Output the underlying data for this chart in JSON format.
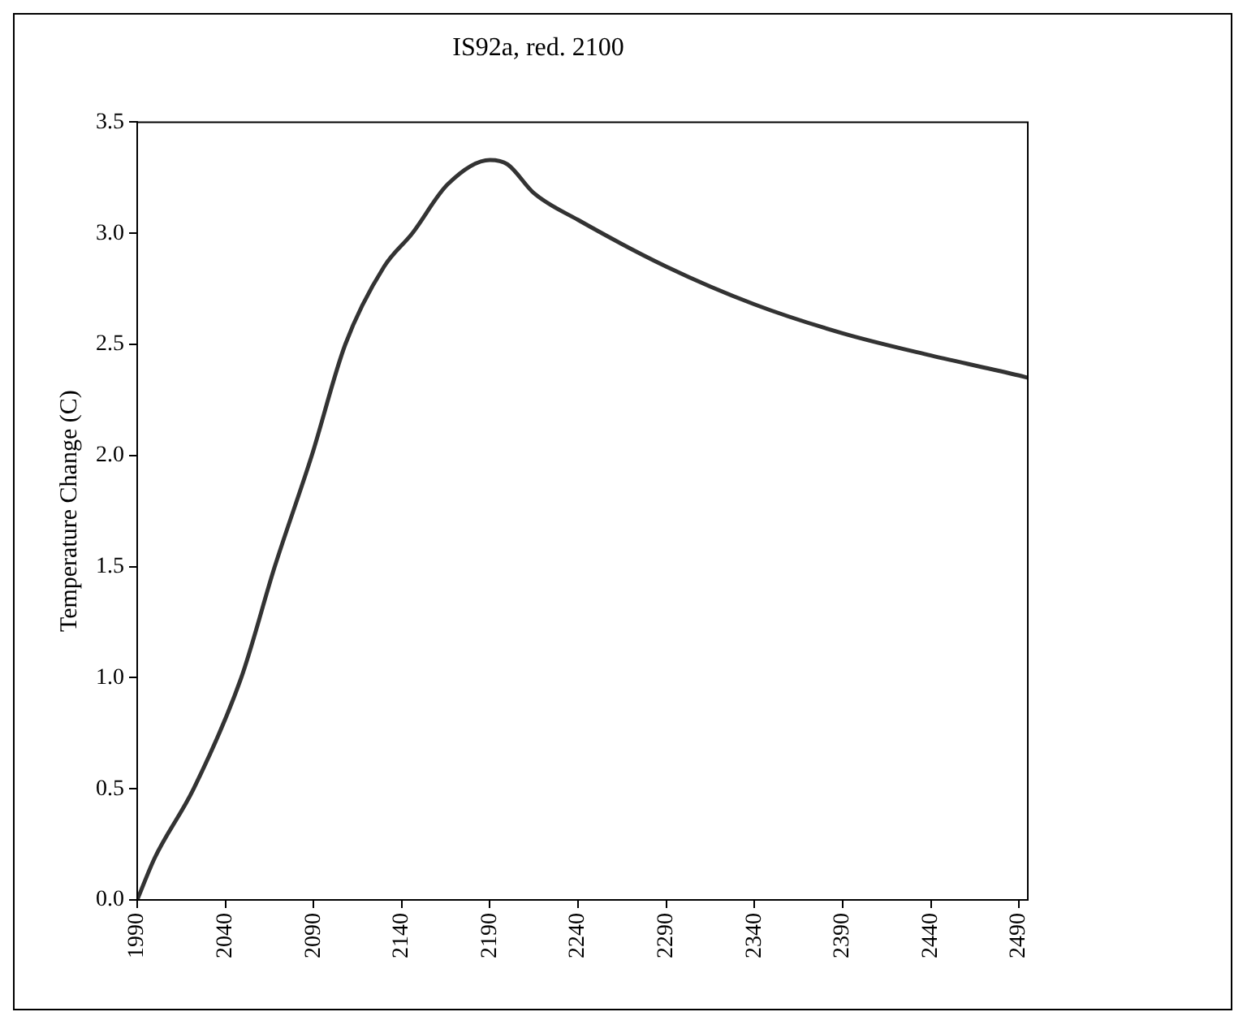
{
  "chart_data": {
    "type": "line",
    "title": "IS92a, red. 2100",
    "ylabel": "Temperature Change (C)",
    "x": [
      1990,
      2000,
      2022,
      2049,
      2068,
      2089,
      2108,
      2130,
      2146,
      2166,
      2190,
      2200,
      2215,
      2240,
      2290,
      2340,
      2390,
      2440,
      2490,
      2495
    ],
    "series": [
      {
        "color": "#333333",
        "values": [
          0,
          0.19,
          0.5,
          1.0,
          1.5,
          2.0,
          2.5,
          2.85,
          3.0,
          3.22,
          3.33,
          3.31,
          3.18,
          3.06,
          2.85,
          2.68,
          2.55,
          2.45,
          2.36,
          2.35
        ]
      }
    ],
    "xlim": [
      1990,
      2495
    ],
    "xticks": [
      1990,
      2040,
      2090,
      2140,
      2190,
      2240,
      2290,
      2340,
      2390,
      2440,
      2490
    ],
    "ylim": [
      0,
      3.5
    ],
    "yticks": [
      {
        "value": 0,
        "label": "0.0"
      },
      {
        "value": 0.5,
        "label": "0.5"
      },
      {
        "value": 1,
        "label": "1.0"
      },
      {
        "value": 1.5,
        "label": "1.5"
      },
      {
        "value": 2,
        "label": "2.0"
      },
      {
        "value": 2.5,
        "label": "2.5"
      },
      {
        "value": 3,
        "label": "3.0"
      },
      {
        "value": 3.5,
        "label": "3.5"
      }
    ],
    "grid": false,
    "legend": false,
    "marker": "none",
    "line_style": "solid"
  }
}
